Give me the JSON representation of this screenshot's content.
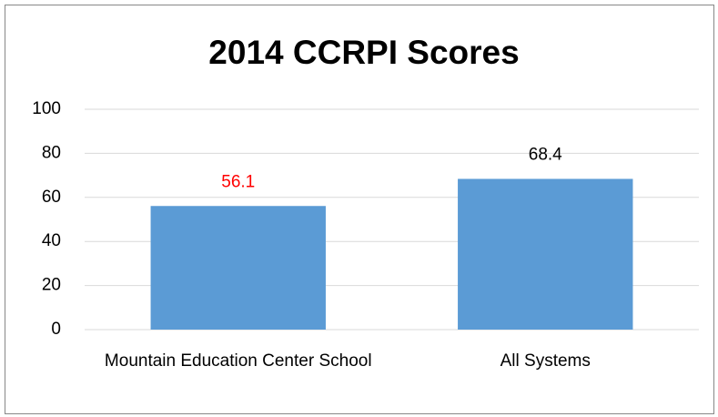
{
  "chart_data": {
    "type": "bar",
    "title": "2014 CCRPI Scores",
    "categories": [
      "Mountain Education Center School",
      "All Systems"
    ],
    "values": [
      56.1,
      68.4
    ],
    "color": "#5b9bd5",
    "value_label_colors": [
      "#ff0000",
      "#000000"
    ],
    "ylim": [
      0,
      100
    ],
    "yticks": [
      0,
      20,
      40,
      60,
      80,
      100
    ],
    "grid": true
  }
}
